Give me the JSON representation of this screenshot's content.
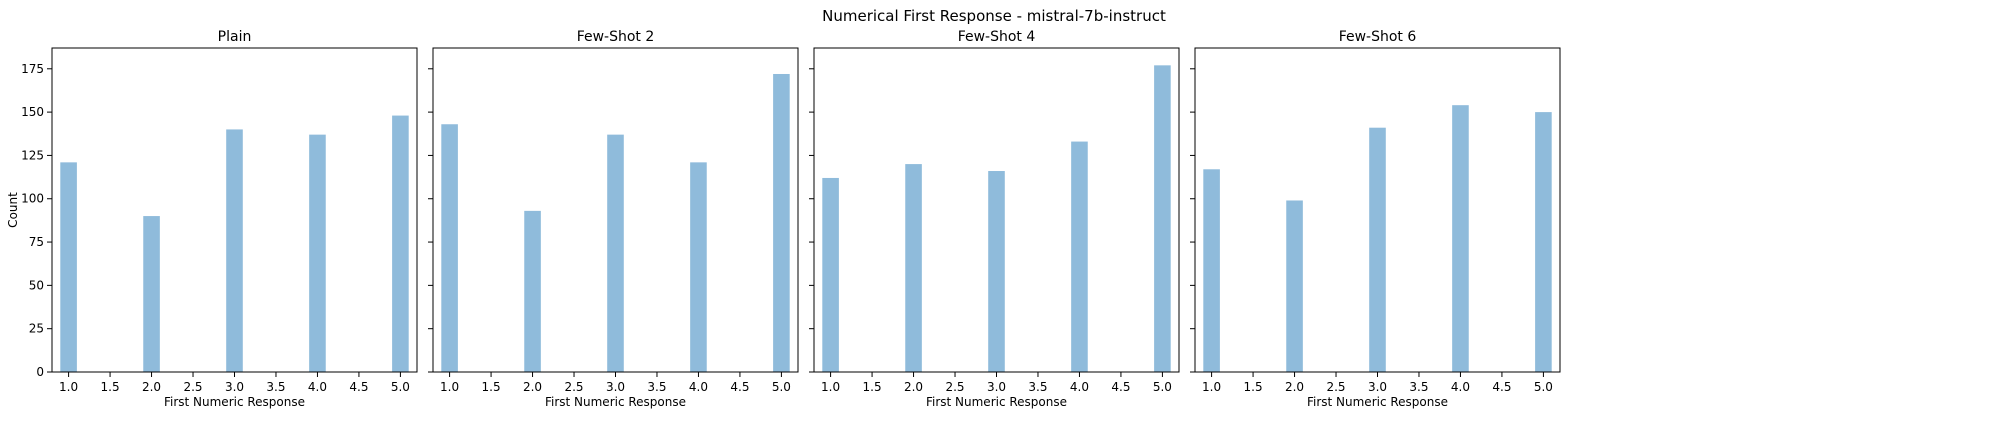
{
  "figure": {
    "suptitle": "Numerical First Response - mistral-7b-instruct",
    "bar_color": "#8fbbdb"
  },
  "chart_data": [
    {
      "type": "bar",
      "title": "Plain",
      "xlabel": "First Numeric Response",
      "ylabel": "Count",
      "x": [
        1,
        2,
        3,
        4,
        5
      ],
      "values": [
        121,
        90,
        140,
        137,
        148
      ],
      "xlim": [
        0.8,
        5.2
      ],
      "ylim": [
        0,
        187
      ],
      "xticks": [
        "1.0",
        "1.5",
        "2.0",
        "2.5",
        "3.0",
        "3.5",
        "4.0",
        "4.5",
        "5.0"
      ],
      "yticks": [
        "0",
        "25",
        "50",
        "75",
        "100",
        "125",
        "150",
        "175"
      ],
      "grid": false
    },
    {
      "type": "bar",
      "title": "Few-Shot 2",
      "xlabel": "First Numeric Response",
      "ylabel": "",
      "x": [
        1,
        2,
        3,
        4,
        5
      ],
      "values": [
        143,
        93,
        137,
        121,
        172
      ],
      "xlim": [
        0.8,
        5.2
      ],
      "ylim": [
        0,
        187
      ],
      "xticks": [
        "1.0",
        "1.5",
        "2.0",
        "2.5",
        "3.0",
        "3.5",
        "4.0",
        "4.5",
        "5.0"
      ],
      "grid": false
    },
    {
      "type": "bar",
      "title": "Few-Shot 4",
      "xlabel": "First Numeric Response",
      "ylabel": "",
      "x": [
        1,
        2,
        3,
        4,
        5
      ],
      "values": [
        112,
        120,
        116,
        133,
        177
      ],
      "xlim": [
        0.8,
        5.2
      ],
      "ylim": [
        0,
        187
      ],
      "xticks": [
        "1.0",
        "1.5",
        "2.0",
        "2.5",
        "3.0",
        "3.5",
        "4.0",
        "4.5",
        "5.0"
      ],
      "grid": false
    },
    {
      "type": "bar",
      "title": "Few-Shot 6",
      "xlabel": "First Numeric Response",
      "ylabel": "",
      "x": [
        1,
        2,
        3,
        4,
        5
      ],
      "values": [
        117,
        99,
        141,
        154,
        150
      ],
      "xlim": [
        0.8,
        5.2
      ],
      "ylim": [
        0,
        187
      ],
      "xticks": [
        "1.0",
        "1.5",
        "2.0",
        "2.5",
        "3.0",
        "3.5",
        "4.0",
        "4.5",
        "5.0"
      ],
      "grid": false
    }
  ]
}
